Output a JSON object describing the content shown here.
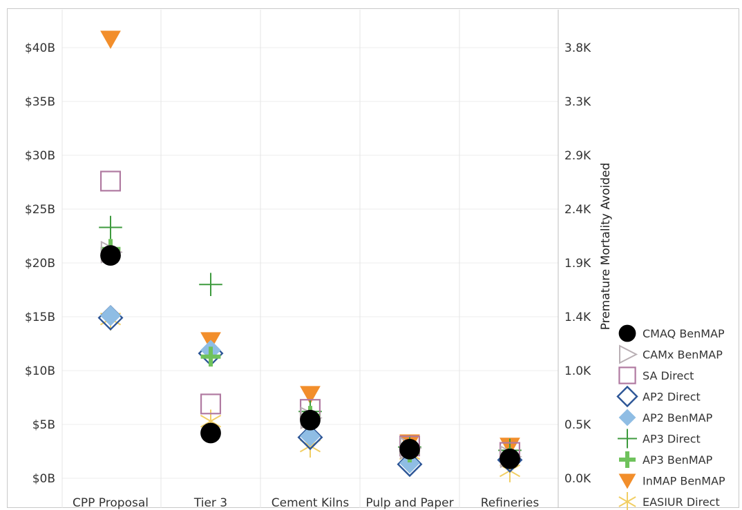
{
  "chart_data": {
    "type": "scatter",
    "categories": [
      "CPP Proposal",
      "Tier 3",
      "Cement Kilns",
      "Pulp and Paper",
      "Refineries"
    ],
    "y_left": {
      "label": "",
      "ticks": [
        "$0B",
        "$5B",
        "$10B",
        "$15B",
        "$20B",
        "$25B",
        "$30B",
        "$35B",
        "$40B"
      ],
      "tick_values": [
        0,
        5,
        10,
        15,
        20,
        25,
        30,
        35,
        40
      ],
      "range": [
        -0.4,
        42
      ]
    },
    "y_right": {
      "label": "Premature Mortality Avoided",
      "ticks": [
        "0.0K",
        "0.5K",
        "1.0K",
        "1.4K",
        "1.9K",
        "2.4K",
        "2.9K",
        "3.3K",
        "3.8K"
      ]
    },
    "grid": true,
    "legend_position": "right",
    "series": [
      {
        "name": "CMAQ BenMAP",
        "marker": "circle-filled",
        "color": "#000000",
        "values": [
          20.7,
          4.2,
          5.4,
          2.7,
          1.8
        ]
      },
      {
        "name": "CAMx BenMAP",
        "marker": "triangle-right",
        "color": "#b9afb4",
        "values": [
          21.0,
          null,
          5.6,
          2.8,
          2.0
        ]
      },
      {
        "name": "SA Direct",
        "marker": "square-open",
        "color": "#b07aa1",
        "values": [
          27.6,
          6.9,
          6.4,
          3.0,
          2.4
        ]
      },
      {
        "name": "AP2 Direct",
        "marker": "diamond-open",
        "color": "#2c5596",
        "values": [
          14.9,
          11.6,
          3.8,
          1.3,
          1.7
        ]
      },
      {
        "name": "AP2 BenMAP",
        "marker": "diamond-filled",
        "color": "#8fbde4",
        "values": [
          15.1,
          11.9,
          3.9,
          1.4,
          1.8
        ]
      },
      {
        "name": "AP3 Direct",
        "marker": "plus-thin",
        "color": "#3d9a3d",
        "values": [
          23.3,
          18.0,
          6.2,
          2.9,
          2.6
        ]
      },
      {
        "name": "AP3 BenMAP",
        "marker": "plus-thick",
        "color": "#6fc25c",
        "values": [
          21.3,
          11.3,
          5.8,
          2.4,
          1.9
        ]
      },
      {
        "name": "InMAP BenMAP",
        "marker": "triangle-down",
        "color": "#f28e2b",
        "values": [
          40.8,
          12.8,
          7.8,
          3.3,
          3.0
        ]
      },
      {
        "name": "EASIUR Direct",
        "marker": "asterisk",
        "color": "#f1ce63",
        "values": [
          14.8,
          5.3,
          3.0,
          2.3,
          0.7
        ]
      }
    ]
  }
}
